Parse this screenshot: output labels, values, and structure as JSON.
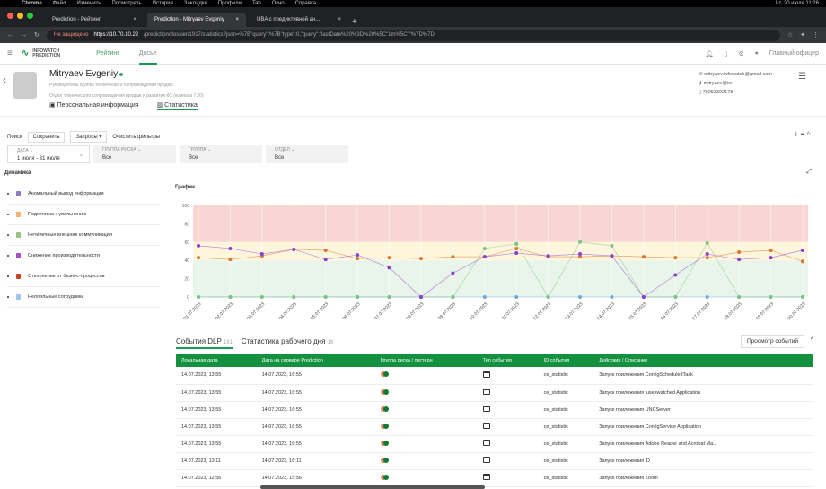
{
  "macos_menu": [
    "Chrome",
    "Файл",
    "Изменить",
    "Посмотреть",
    "История",
    "Закладки",
    "Профили",
    "Tab",
    "Окно",
    "Справка"
  ],
  "macos_clock": "Чт, 20 июля 11:26",
  "browser": {
    "tabs": [
      {
        "label": "Prediction - Рейтинг"
      },
      {
        "label": "Prediction - Mitryaev Evgeniy"
      },
      {
        "label": "UBA с предиктивной ан..."
      }
    ],
    "security": "Не защищено",
    "url_host": "https://10.70.10.22",
    "url_rest": "/prediction/dossier/1917/statistics?json=%7B\"query\":%7B\"type\":0,\"query\":\"lastDate%20%3D%20%5C\"1m%5C\"\"%7D%7D"
  },
  "app": {
    "logo_line1": "INFOWATCH",
    "logo_line2": "PREDICTION",
    "nav": [
      "Рейтинг",
      "Досье"
    ],
    "user": "Главный офицер"
  },
  "profile": {
    "name": "Mitryaev Evgeniy",
    "position": "Руководитель группы технического сопровождения продаж",
    "department": "Отдел технического сопровождения продаж и развития КС (комната 7.20)",
    "tabs": [
      "Персональная информация",
      "Статистика"
    ],
    "email": "mitryaev.infowatch@gmail.com",
    "login": "mitryaev@iw",
    "phone": "79253302178"
  },
  "filters": {
    "search": "Поиск",
    "save": "Сохранить",
    "queries": "Запросы",
    "clear": "Очистить фильтры",
    "boxes": [
      {
        "label": "ДАТА",
        "value": "1 июля - 31 июля"
      },
      {
        "label": "ГРУППА РИСКА",
        "value": "Все"
      },
      {
        "label": "ГРУППА",
        "value": "Все"
      },
      {
        "label": "ОТДЕЛ",
        "value": "Все"
      }
    ]
  },
  "dynamics": {
    "title": "Динамика",
    "items": [
      {
        "label": "Аномальный вывод информации",
        "color": "#8e7cc3"
      },
      {
        "label": "Подготовка к увольнению",
        "color": "#f6b26b"
      },
      {
        "label": "Нетипичные внешние коммуникации",
        "color": "#93c47d"
      },
      {
        "label": "Снижение производительности",
        "color": "#a64dce"
      },
      {
        "label": "Отклонение от бизнес-процессов",
        "color": "#cc4125"
      },
      {
        "label": "Нелояльные сотрудники",
        "color": "#9fc5e8"
      }
    ]
  },
  "chart_data": {
    "type": "line",
    "title": "График",
    "x": [
      "01.07.2023",
      "02.07.2023",
      "03.07.2023",
      "04.07.2023",
      "05.07.2023",
      "06.07.2023",
      "07.07.2023",
      "08.07.2023",
      "09.07.2023",
      "10.07.2023",
      "11.07.2023",
      "12.07.2023",
      "13.07.2023",
      "14.07.2023",
      "15.07.2023",
      "16.07.2023",
      "17.07.2023",
      "18.07.2023",
      "19.07.2023",
      "20.07.2023"
    ],
    "ylim": [
      0,
      100
    ],
    "yticks": [
      0,
      20,
      40,
      60,
      80,
      100
    ],
    "bands": [
      {
        "from": 0,
        "to": 40,
        "color": "#e9f5ea"
      },
      {
        "from": 40,
        "to": 60,
        "color": "#fdf6dc"
      },
      {
        "from": 60,
        "to": 100,
        "color": "#f9d6d3"
      }
    ],
    "series": [
      {
        "color": "#8a3fd1",
        "values": [
          56,
          53,
          47,
          52,
          41,
          46,
          32,
          0,
          26,
          44,
          48,
          45,
          47,
          45,
          0,
          24,
          47,
          41,
          43,
          51
        ]
      },
      {
        "color": "#d9752e",
        "values": [
          43,
          41,
          45,
          52,
          51,
          42,
          43,
          42,
          44,
          44,
          53,
          44,
          44,
          45,
          44,
          43,
          43,
          49,
          51,
          39
        ]
      },
      {
        "color": "#7cc47f",
        "values": [
          0,
          0,
          0,
          0,
          0,
          0,
          0,
          0,
          0,
          53,
          58,
          0,
          60,
          56,
          0,
          0,
          59,
          0,
          0,
          0
        ]
      },
      {
        "color": "#6fa8dc",
        "values": [
          0,
          0,
          0,
          0,
          0,
          0,
          0,
          0,
          0,
          0,
          0,
          0,
          0,
          0,
          0,
          0,
          0,
          0,
          0,
          0
        ]
      }
    ]
  },
  "events": {
    "tab_dlp": "События DLP",
    "dlp_count": "181",
    "tab_workday": "Статистика рабочего дня",
    "workday_count": "16",
    "view_button": "Просмотр событий",
    "columns": [
      "Локальная дата",
      "Дата на сервере Prediction",
      "Группа риска / паттерн",
      "Тип события",
      "ID события",
      "Действия / Описание"
    ],
    "rows": [
      [
        "14.07.2023, 13:55",
        "14.07.2023, 16:55",
        "os_statistic",
        "Запуск приложения ConfigScheduledTask"
      ],
      [
        "14.07.2023, 13:55",
        "14.07.2023, 16:55",
        "os_statistic",
        "Запуск приложения iuseswatched Application"
      ],
      [
        "14.07.2023, 13:55",
        "14.07.2023, 16:55",
        "os_statistic",
        "Запуск приложения UNCServer"
      ],
      [
        "14.07.2023, 13:55",
        "14.07.2023, 16:55",
        "os_statistic",
        "Запуск приложения ConfigService Application"
      ],
      [
        "14.07.2023, 13:55",
        "14.07.2023, 16:55",
        "os_statistic",
        "Запуск приложения Adobe Reader and Acrobat Ma..."
      ],
      [
        "14.07.2023, 13:11",
        "14.07.2023, 16:11",
        "os_statistic",
        "Запуск приложения iD"
      ],
      [
        "14.07.2023, 12:56",
        "14.07.2023, 15:56",
        "os_statistic",
        "Запуск приложения Zoom"
      ]
    ]
  }
}
